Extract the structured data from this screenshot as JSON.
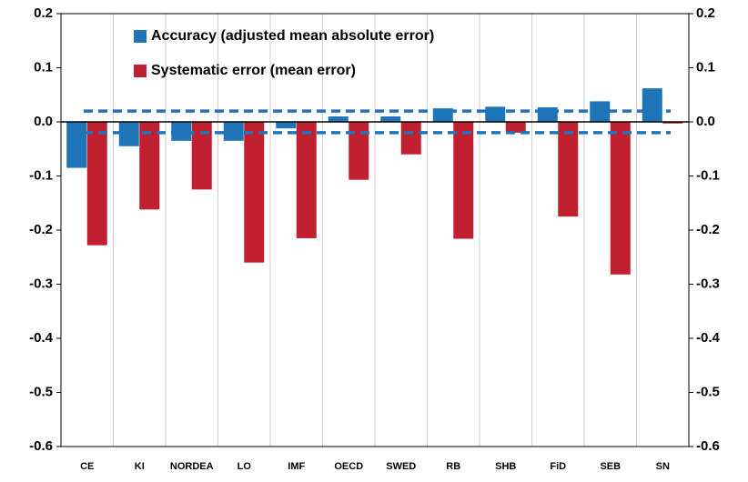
{
  "chart_data": {
    "type": "bar",
    "categories": [
      "CE",
      "KI",
      "NORDEA",
      "LO",
      "IMF",
      "OECD",
      "SWED",
      "RB",
      "SHB",
      "FiD",
      "SEB",
      "SN"
    ],
    "series": [
      {
        "name": "Accuracy (adjusted mean absolute error)",
        "color": "#1f74b8",
        "values": [
          -0.085,
          -0.045,
          -0.035,
          -0.035,
          -0.012,
          0.01,
          0.01,
          0.025,
          0.028,
          0.027,
          0.038,
          0.062
        ]
      },
      {
        "name": "Systematic error (mean error)",
        "color": "#c0202f",
        "values": [
          -0.228,
          -0.162,
          -0.125,
          -0.26,
          -0.215,
          -0.107,
          -0.06,
          -0.216,
          -0.02,
          -0.175,
          -0.282,
          -0.003
        ]
      }
    ],
    "ylim": [
      -0.6,
      0.2
    ],
    "yticks": [
      0.2,
      0.1,
      {
        "value": 0,
        "label": "0.0"
      },
      -0.1,
      -0.2,
      -0.3,
      -0.4,
      -0.5,
      -0.6
    ],
    "reference_lines": [
      0.02,
      -0.02
    ],
    "reference_color": "#1f74b8",
    "grid": "x"
  }
}
